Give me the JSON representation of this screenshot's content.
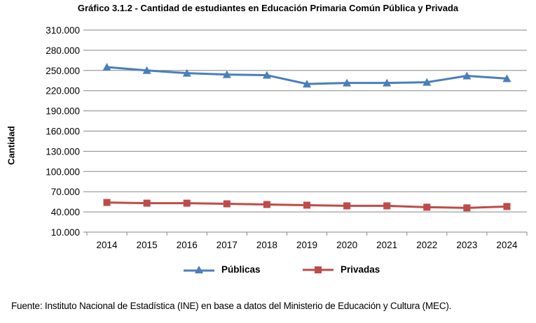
{
  "chart_data": {
    "type": "line",
    "title": "Gráfico 3.1.2 - Cantidad de estudiantes en Educación Primaria Común Pública y Privada",
    "xlabel": "",
    "ylabel": "Cantidad",
    "categories": [
      "2014",
      "2015",
      "2016",
      "2017",
      "2018",
      "2019",
      "2020",
      "2021",
      "2022",
      "2023",
      "2024"
    ],
    "ylim": [
      10000,
      310000
    ],
    "yticks": [
      10000,
      40000,
      70000,
      100000,
      130000,
      160000,
      190000,
      220000,
      250000,
      280000,
      310000
    ],
    "ytick_labels": [
      "10.000",
      "40.000",
      "70.000",
      "100.000",
      "130.000",
      "160.000",
      "190.000",
      "220.000",
      "250.000",
      "280.000",
      "310.000"
    ],
    "grid": true,
    "legend_position": "bottom",
    "series": [
      {
        "name": "Públicas",
        "color": "#4A7EBB",
        "marker": "triangle",
        "values": [
          255000,
          250000,
          246000,
          244000,
          243000,
          230000,
          231500,
          231500,
          232500,
          242000,
          238000
        ]
      },
      {
        "name": "Privadas",
        "color": "#BE4B48",
        "marker": "square",
        "values": [
          54000,
          53000,
          53000,
          52000,
          51000,
          50000,
          49000,
          49000,
          47000,
          46000,
          48000
        ]
      }
    ]
  },
  "footer": "Fuente: Instituto Nacional de Estadística (INE) en base a datos del Ministerio de Educación y Cultura (MEC)."
}
